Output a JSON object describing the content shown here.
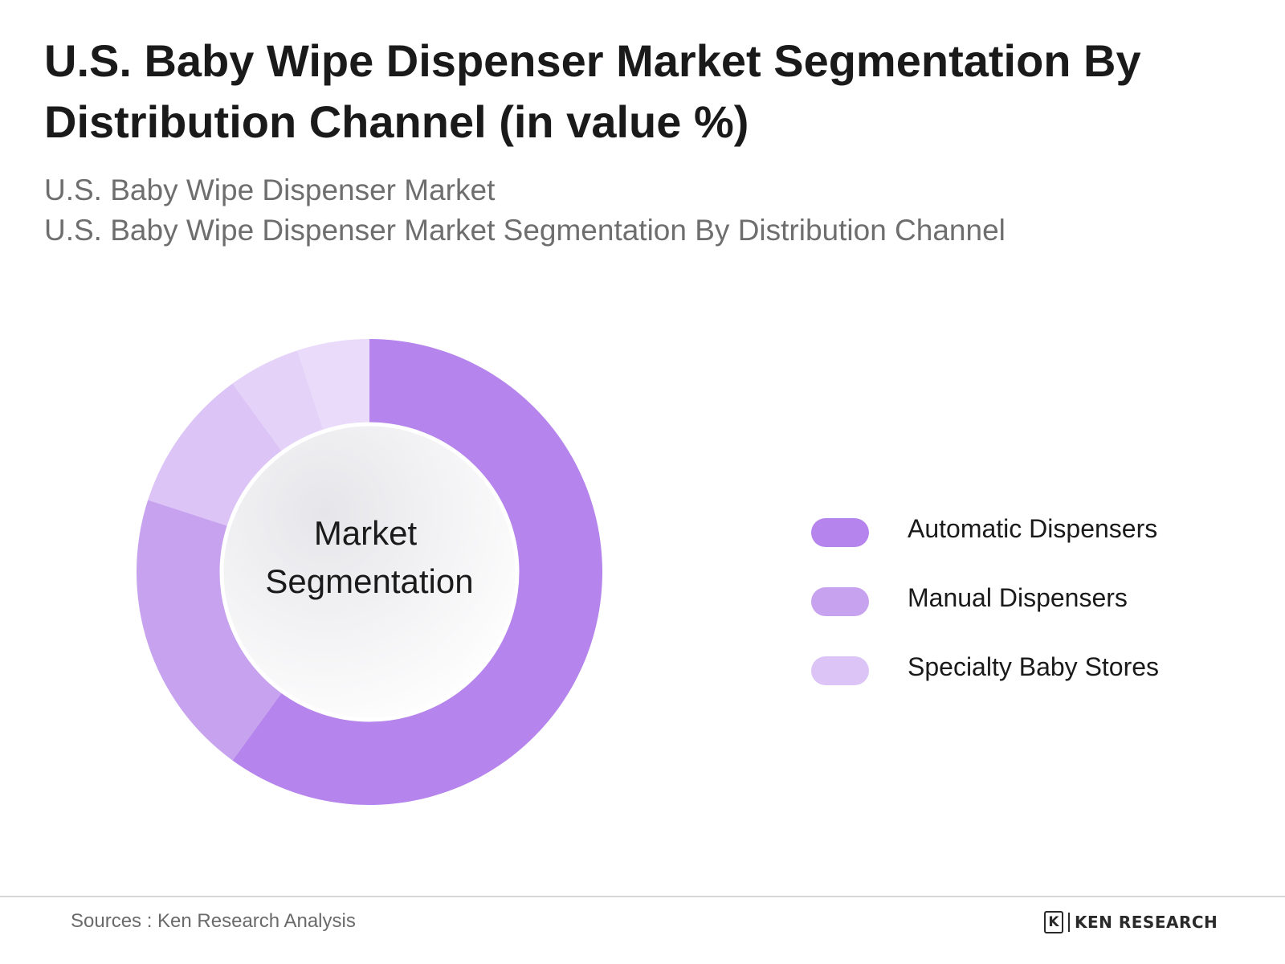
{
  "header": {
    "title": "U.S. Baby Wipe Dispenser Market Segmentation By Distribution Channel (in value %)",
    "subtitle_line1": "U.S. Baby Wipe Dispenser Market",
    "subtitle_line2": "U.S. Baby Wipe Dispenser Market Segmentation By Distribution Channel"
  },
  "chart_data": {
    "type": "pie",
    "variant": "donut",
    "center_label_line1": "Market",
    "center_label_line2": "Segmentation",
    "categories": [
      "Automatic Dispensers",
      "Manual Dispensers",
      "Specialty Baby Stores",
      "",
      ""
    ],
    "values": [
      60,
      20,
      10,
      5,
      5
    ],
    "colors": [
      "#b584ec",
      "#c7a2ef",
      "#dcc4f6",
      "#e4d2f8",
      "#eadbfa"
    ],
    "legend_position": "right",
    "legend": [
      {
        "label": "Automatic Dispensers",
        "color": "#b584ec"
      },
      {
        "label": "Manual Dispensers",
        "color": "#c7a2ef"
      },
      {
        "label": "Specialty Baby Stores",
        "color": "#dcc4f6"
      }
    ]
  },
  "footer": {
    "source": "Sources : Ken Research Analysis",
    "brand_mark": "K",
    "brand_name": "KEN RESEARCH"
  }
}
